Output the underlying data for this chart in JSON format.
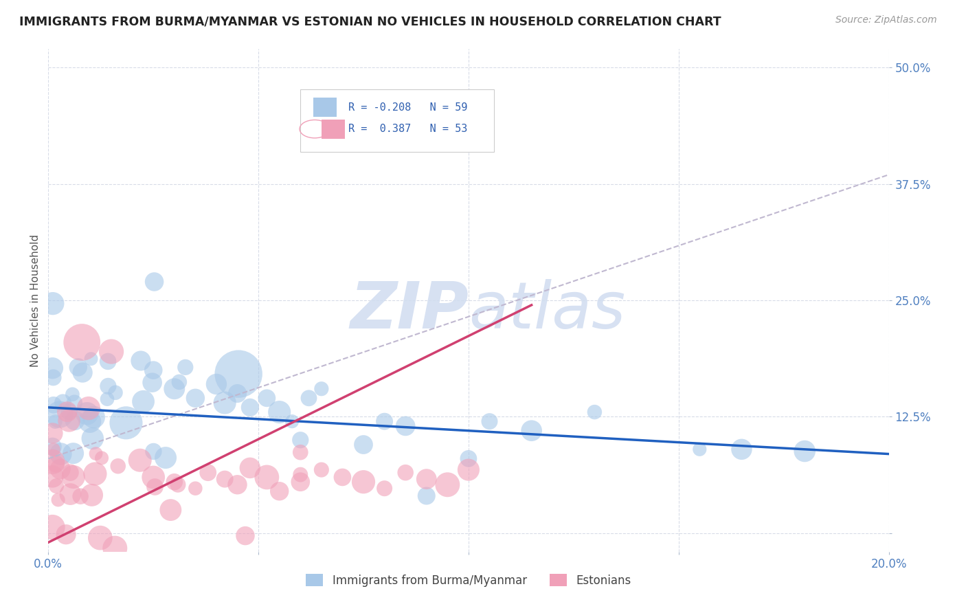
{
  "title": "IMMIGRANTS FROM BURMA/MYANMAR VS ESTONIAN NO VEHICLES IN HOUSEHOLD CORRELATION CHART",
  "source": "Source: ZipAtlas.com",
  "ylabel": "No Vehicles in Household",
  "x_min": 0.0,
  "x_max": 0.2,
  "y_min": -0.02,
  "y_max": 0.52,
  "x_ticks": [
    0.0,
    0.05,
    0.1,
    0.15,
    0.2
  ],
  "x_tick_labels": [
    "0.0%",
    "",
    "",
    "",
    "20.0%"
  ],
  "y_ticks": [
    0.0,
    0.125,
    0.25,
    0.375,
    0.5
  ],
  "y_tick_labels": [
    "",
    "12.5%",
    "25.0%",
    "37.5%",
    "50.0%"
  ],
  "blue_color": "#a8c8e8",
  "pink_color": "#f0a0b8",
  "blue_line_color": "#2060c0",
  "pink_line_color": "#d04070",
  "dashed_line_color": "#c0b8d0",
  "background_color": "#ffffff",
  "grid_color": "#d8dce8",
  "watermark_color": "#d0dcf0",
  "blue_trend_x0": 0.0,
  "blue_trend_x1": 0.2,
  "blue_trend_y0": 0.135,
  "blue_trend_y1": 0.085,
  "pink_trend_x0": 0.0,
  "pink_trend_x1": 0.115,
  "pink_trend_y0": -0.01,
  "pink_trend_y1": 0.245,
  "dashed_trend_x0": 0.0,
  "dashed_trend_x1": 0.2,
  "dashed_trend_y0": 0.08,
  "dashed_trend_y1": 0.385,
  "legend_label_blue": "R = -0.208",
  "legend_label_pink": "R =  0.387",
  "legend_n_blue": "N = 59",
  "legend_n_pink": "N = 53",
  "bottom_legend_blue": "Immigrants from Burma/Myanmar",
  "bottom_legend_pink": "Estonians"
}
